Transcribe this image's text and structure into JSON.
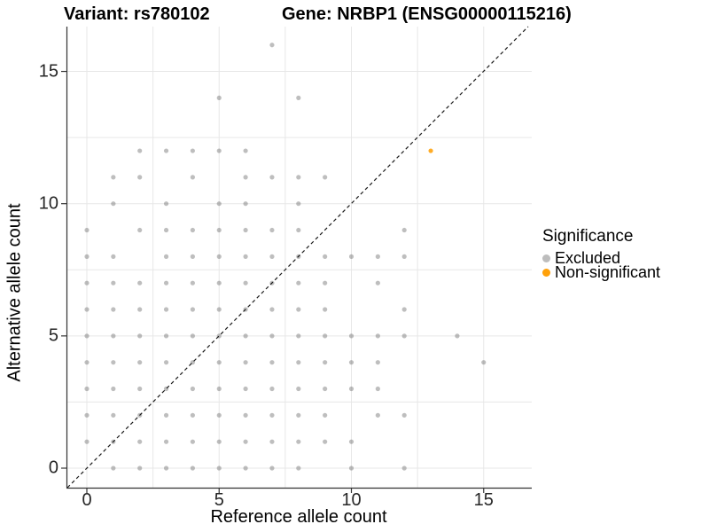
{
  "titles": {
    "variant": "Variant: rs780102",
    "gene": "Gene: NRBP1 (ENSG00000115216)"
  },
  "axes": {
    "x_label": "Reference allele count",
    "y_label": "Alternative allele count",
    "x_ticks": [
      "0",
      "5",
      "10",
      "15"
    ],
    "y_ticks": [
      "0",
      "5",
      "10",
      "15"
    ],
    "tick_values": [
      0,
      5,
      10,
      15
    ],
    "grid_values": [
      0,
      2.5,
      5,
      7.5,
      10,
      12.5,
      15
    ]
  },
  "legend": {
    "title": "Significance",
    "items": [
      {
        "label": "Excluded",
        "color": "#bdbdbd"
      },
      {
        "label": "Non-significant",
        "color": "#ffa10a"
      }
    ]
  },
  "chart_data": {
    "type": "scatter",
    "title": "Variant: rs780102 / Gene: NRBP1 (ENSG00000115216)",
    "xlabel": "Reference allele count",
    "ylabel": "Alternative allele count",
    "xlim": [
      -0.8,
      16.8
    ],
    "ylim": [
      -0.7,
      16.7
    ],
    "grid": "on",
    "legend_position": "right",
    "identity_line": {
      "show": true,
      "style": "dashed",
      "slope": 1,
      "intercept": 0,
      "color": "#1a1a1a"
    },
    "series": [
      {
        "name": "Excluded",
        "color": "#6e6e6e",
        "opacity": 0.45,
        "legend_color": "#bdbdbd",
        "points": [
          [
            1,
            0
          ],
          [
            2,
            0
          ],
          [
            3,
            0
          ],
          [
            4,
            0
          ],
          [
            5,
            0
          ],
          [
            6,
            0
          ],
          [
            7,
            0
          ],
          [
            8,
            0
          ],
          [
            10,
            0
          ],
          [
            12,
            0
          ],
          [
            0,
            1
          ],
          [
            1,
            1
          ],
          [
            2,
            1
          ],
          [
            3,
            1
          ],
          [
            4,
            1
          ],
          [
            5,
            1
          ],
          [
            6,
            1
          ],
          [
            7,
            1
          ],
          [
            8,
            1
          ],
          [
            9,
            1
          ],
          [
            10,
            1
          ],
          [
            0,
            2
          ],
          [
            1,
            2
          ],
          [
            2,
            2
          ],
          [
            3,
            2
          ],
          [
            4,
            2
          ],
          [
            5,
            2
          ],
          [
            6,
            2
          ],
          [
            7,
            2
          ],
          [
            8,
            2
          ],
          [
            9,
            2
          ],
          [
            11,
            2
          ],
          [
            12,
            2
          ],
          [
            0,
            3
          ],
          [
            1,
            3
          ],
          [
            2,
            3
          ],
          [
            3,
            3
          ],
          [
            4,
            3
          ],
          [
            5,
            3
          ],
          [
            6,
            3
          ],
          [
            7,
            3
          ],
          [
            8,
            3
          ],
          [
            9,
            3
          ],
          [
            10,
            3
          ],
          [
            11,
            3
          ],
          [
            0,
            4
          ],
          [
            1,
            4
          ],
          [
            2,
            4
          ],
          [
            3,
            4
          ],
          [
            4,
            4
          ],
          [
            5,
            4
          ],
          [
            6,
            4
          ],
          [
            7,
            4
          ],
          [
            8,
            4
          ],
          [
            9,
            4
          ],
          [
            10,
            4
          ],
          [
            11,
            4
          ],
          [
            15,
            4
          ],
          [
            0,
            5
          ],
          [
            1,
            5
          ],
          [
            2,
            5
          ],
          [
            3,
            5
          ],
          [
            4,
            5
          ],
          [
            5,
            5
          ],
          [
            6,
            5
          ],
          [
            7,
            5
          ],
          [
            8,
            5
          ],
          [
            9,
            5
          ],
          [
            10,
            5
          ],
          [
            11,
            5
          ],
          [
            12,
            5
          ],
          [
            14,
            5
          ],
          [
            0,
            6
          ],
          [
            1,
            6
          ],
          [
            2,
            6
          ],
          [
            3,
            6
          ],
          [
            4,
            6
          ],
          [
            5,
            6
          ],
          [
            6,
            6
          ],
          [
            7,
            6
          ],
          [
            8,
            6
          ],
          [
            9,
            6
          ],
          [
            12,
            6
          ],
          [
            0,
            7
          ],
          [
            1,
            7
          ],
          [
            2,
            7
          ],
          [
            3,
            7
          ],
          [
            4,
            7
          ],
          [
            5,
            7
          ],
          [
            6,
            7
          ],
          [
            7,
            7
          ],
          [
            8,
            7
          ],
          [
            9,
            7
          ],
          [
            11,
            7
          ],
          [
            0,
            8
          ],
          [
            1,
            8
          ],
          [
            3,
            8
          ],
          [
            4,
            8
          ],
          [
            5,
            8
          ],
          [
            6,
            8
          ],
          [
            7,
            8
          ],
          [
            8,
            8
          ],
          [
            9,
            8
          ],
          [
            10,
            8
          ],
          [
            11,
            8
          ],
          [
            12,
            8
          ],
          [
            0,
            9
          ],
          [
            2,
            9
          ],
          [
            3,
            9
          ],
          [
            4,
            9
          ],
          [
            5,
            9
          ],
          [
            6,
            9
          ],
          [
            7,
            9
          ],
          [
            8,
            9
          ],
          [
            12,
            9
          ],
          [
            1,
            10
          ],
          [
            3,
            10
          ],
          [
            5,
            10
          ],
          [
            6,
            10
          ],
          [
            8,
            10
          ],
          [
            1,
            11
          ],
          [
            2,
            11
          ],
          [
            4,
            11
          ],
          [
            6,
            11
          ],
          [
            7,
            11
          ],
          [
            8,
            11
          ],
          [
            9,
            11
          ],
          [
            2,
            12
          ],
          [
            3,
            12
          ],
          [
            4,
            12
          ],
          [
            5,
            12
          ],
          [
            6,
            12
          ],
          [
            5,
            14
          ],
          [
            8,
            14
          ],
          [
            7,
            16
          ]
        ]
      },
      {
        "name": "Non-significant",
        "color": "#ff9d00",
        "opacity": 0.85,
        "legend_color": "#ffa10a",
        "points": [
          [
            13,
            12
          ]
        ]
      }
    ]
  }
}
